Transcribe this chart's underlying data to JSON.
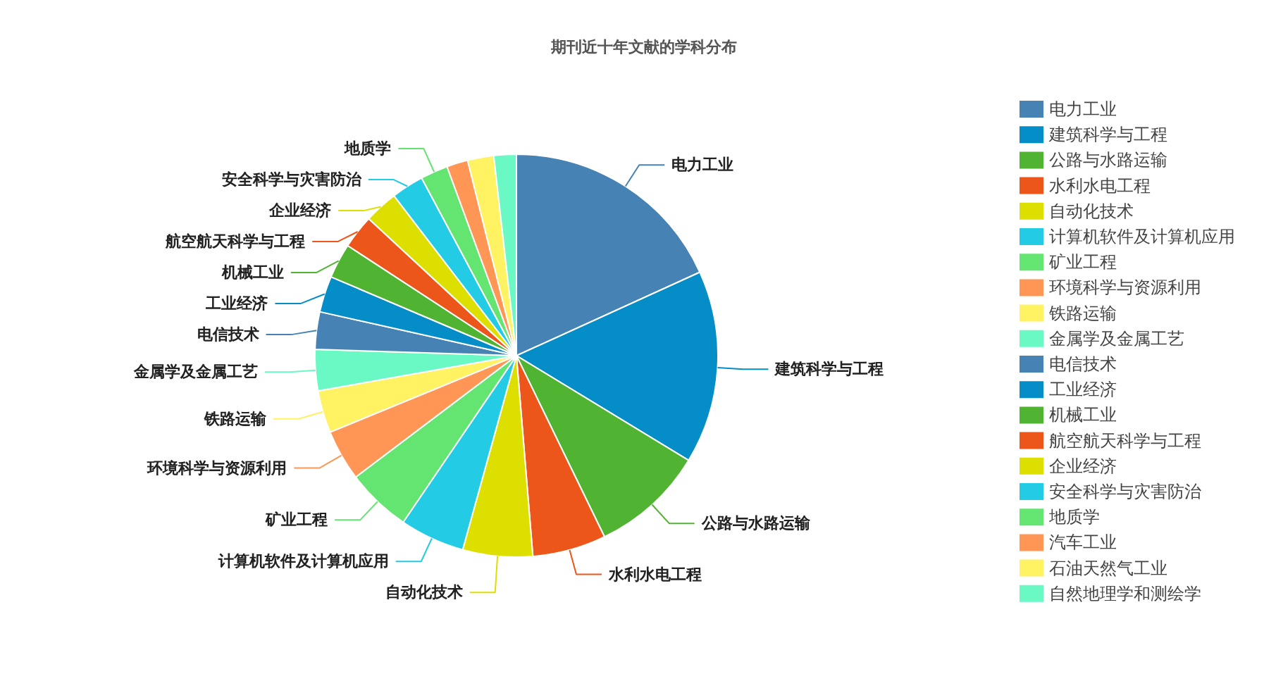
{
  "chart_data": {
    "type": "pie",
    "title": "期刊近十年文献的学科分布",
    "categories": [
      "电力工业",
      "建筑科学与工程",
      "公路与水路运输",
      "水利水电工程",
      "自动化技术",
      "计算机软件及计算机应用",
      "矿业工程",
      "环境科学与资源利用",
      "铁路运输",
      "金属学及金属工艺",
      "电信技术",
      "工业经济",
      "机械工业",
      "航空航天科学与工程",
      "企业经济",
      "安全科学与灾害防治",
      "地质学",
      "汽车工业",
      "石油天然气工业",
      "自然地理学和测绘学"
    ],
    "values": [
      18.2,
      15.5,
      9.1,
      5.9,
      5.6,
      5.2,
      5.2,
      4.1,
      3.4,
      3.3,
      3.0,
      2.9,
      2.8,
      2.7,
      2.7,
      2.6,
      2.2,
      1.7,
      2.1,
      1.8
    ],
    "colors": [
      "#4682b4",
      "#058dc7",
      "#50b432",
      "#ed561b",
      "#dddf00",
      "#24cbe5",
      "#64e572",
      "#ff9655",
      "#fff263",
      "#6af9c4",
      "#4682b4",
      "#058dc7",
      "#50b432",
      "#ed561b",
      "#dddf00",
      "#24cbe5",
      "#64e572",
      "#ff9655",
      "#fff263",
      "#6af9c4"
    ],
    "legend": "right"
  }
}
